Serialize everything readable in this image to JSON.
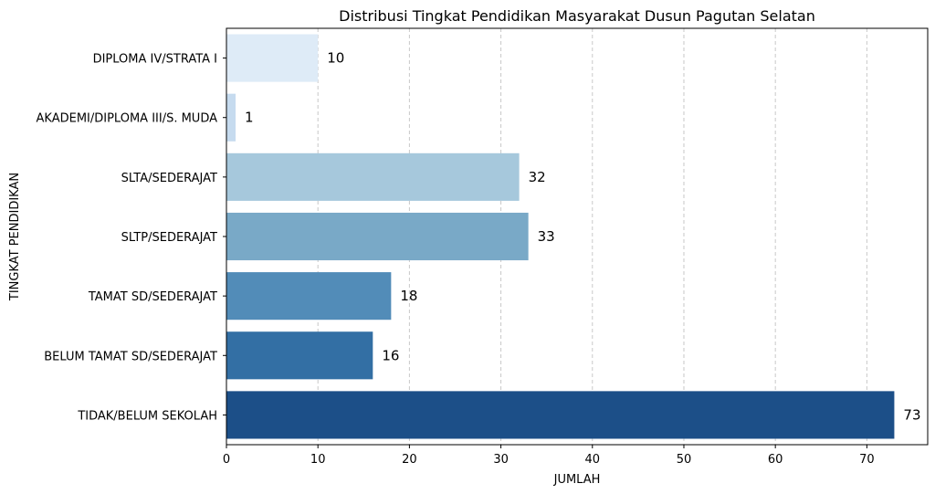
{
  "chart_data": {
    "type": "bar",
    "orientation": "horizontal",
    "title": "Distribusi Tingkat Pendidikan Masyarakat Dusun Pagutan Selatan",
    "xlabel": "JUMLAH",
    "ylabel": "TINGKAT PENDIDIKAN",
    "categories": [
      "DIPLOMA IV/STRATA I",
      "AKADEMI/DIPLOMA III/S. MUDA",
      "SLTA/SEDERAJAT",
      "SLTP/SEDERAJAT",
      "TAMAT SD/SEDERAJAT",
      "BELUM TAMAT SD/SEDERAJAT",
      "TIDAK/BELUM SEKOLAH"
    ],
    "values": [
      10,
      1,
      32,
      33,
      18,
      16,
      73
    ],
    "data_labels": [
      "10",
      "1",
      "32",
      "33",
      "18",
      "16",
      "73"
    ],
    "xlim": [
      0,
      76.65
    ],
    "xticks": [
      0,
      10,
      20,
      30,
      40,
      50,
      60,
      70
    ],
    "xtick_labels": [
      "0",
      "10",
      "20",
      "30",
      "40",
      "50",
      "60",
      "70"
    ],
    "grid": "vertical dashed",
    "colors": [
      "#deebf7",
      "#c6dbef",
      "#a6c8dc",
      "#79a9c7",
      "#528cb8",
      "#336fa4",
      "#1c4f88"
    ]
  }
}
